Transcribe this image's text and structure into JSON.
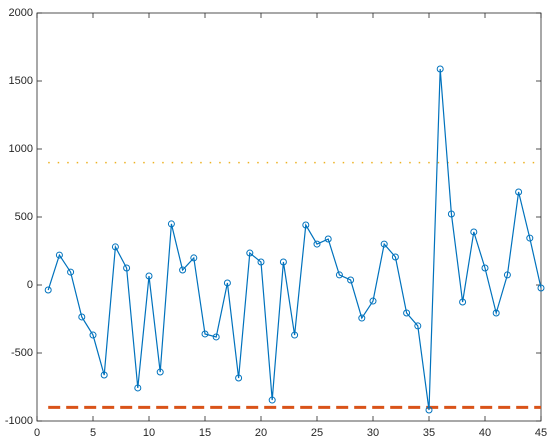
{
  "chart_data": {
    "type": "line",
    "x": [
      1,
      2,
      3,
      4,
      5,
      6,
      7,
      8,
      9,
      10,
      11,
      12,
      13,
      14,
      15,
      16,
      17,
      18,
      19,
      20,
      21,
      22,
      23,
      24,
      25,
      26,
      27,
      28,
      29,
      30,
      31,
      32,
      33,
      34,
      35,
      36,
      37,
      38,
      39,
      40,
      41,
      42,
      43,
      44,
      45
    ],
    "series": [
      {
        "color": "#0072bd",
        "marker": "circle",
        "values": [
          -37,
          220,
          95,
          -235,
          -368,
          -662,
          280,
          125,
          -757,
          66,
          -640,
          449,
          110,
          199,
          -360,
          -382,
          15,
          -684,
          235,
          169,
          -846,
          169,
          -368,
          441,
          301,
          338,
          74,
          37,
          -243,
          -118,
          301,
          206,
          -206,
          -301,
          -919,
          1588,
          522,
          -125,
          390,
          125,
          -206,
          74,
          684,
          345,
          -22
        ]
      }
    ],
    "hlines": [
      {
        "value": 900,
        "color": "#edb120",
        "style": "dotted"
      },
      {
        "value": -900,
        "color": "#d95319",
        "style": "dashed"
      }
    ],
    "xlim": [
      0,
      45
    ],
    "xticks": [
      0,
      5,
      10,
      15,
      20,
      25,
      30,
      35,
      40,
      45
    ],
    "ylim": [
      -1000,
      2000
    ],
    "yticks": [
      -1000,
      -500,
      0,
      500,
      1000,
      1500,
      2000
    ]
  }
}
